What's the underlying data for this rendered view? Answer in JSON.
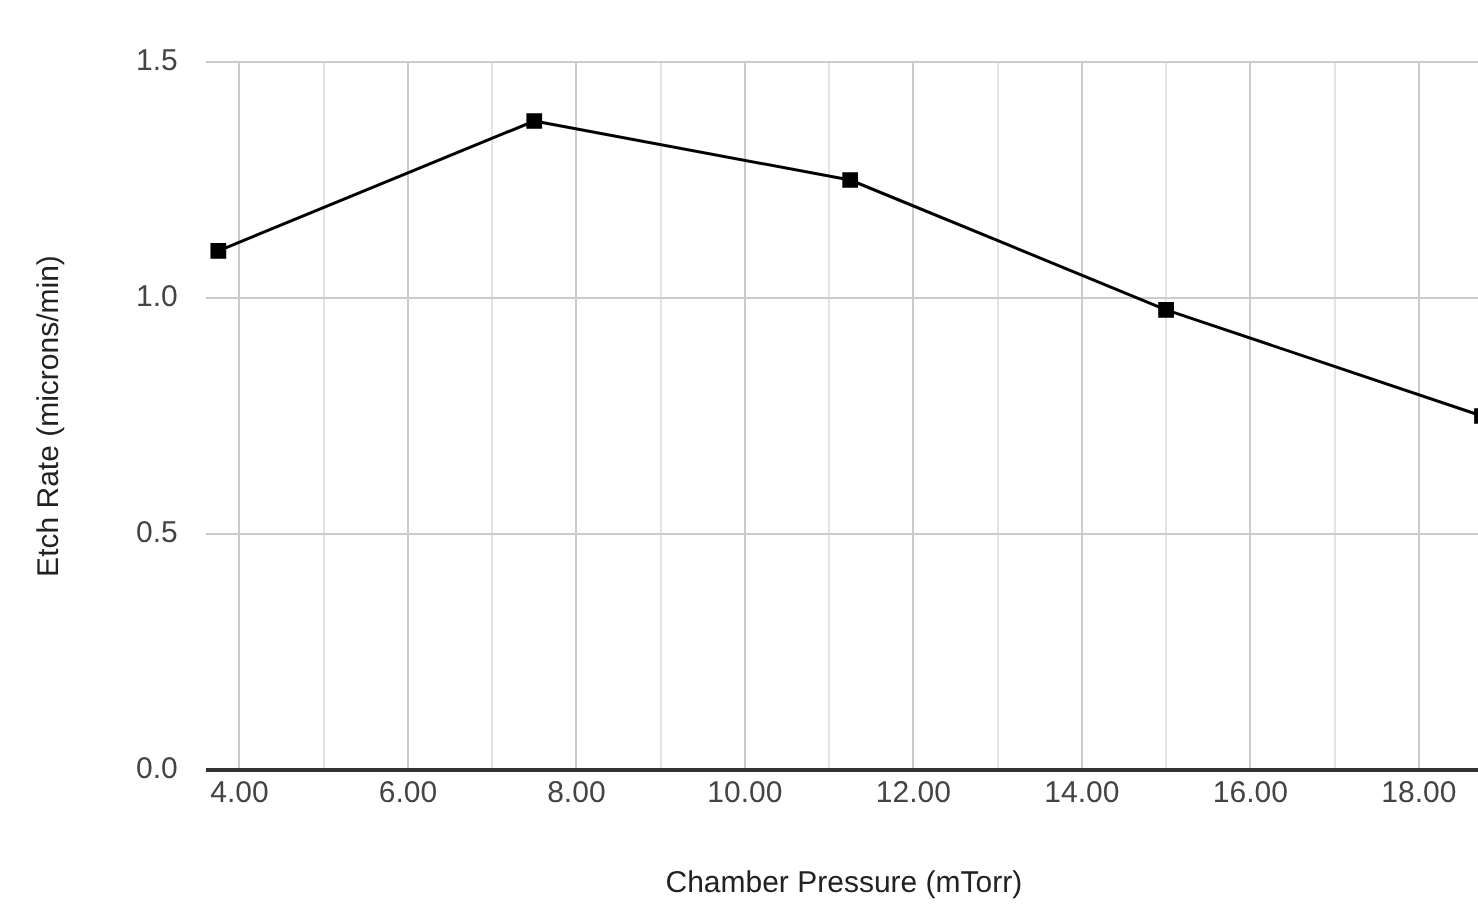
{
  "chart_data": {
    "type": "line",
    "xlabel": "Chamber Pressure (mTorr)",
    "ylabel": "Etch Rate (microns/min)",
    "x": [
      3.75,
      7.5,
      11.25,
      15,
      18.75
    ],
    "series": [
      {
        "color": "#000000",
        "values": [
          1.1,
          1.375,
          1.25,
          0.975,
          0.75
        ]
      }
    ],
    "xlim": [
      3.6,
      18.75
    ],
    "xticks": [
      {
        "value": 4,
        "label": "4.00"
      },
      {
        "value": 5,
        "label": null
      },
      {
        "value": 6,
        "label": "6.00"
      },
      {
        "value": 7,
        "label": null
      },
      {
        "value": 8,
        "label": "8.00"
      },
      {
        "value": 9,
        "label": null
      },
      {
        "value": 10,
        "label": "10.00"
      },
      {
        "value": 11,
        "label": null
      },
      {
        "value": 12,
        "label": "12.00"
      },
      {
        "value": 13,
        "label": null
      },
      {
        "value": 14,
        "label": "14.00"
      },
      {
        "value": 15,
        "label": null
      },
      {
        "value": 16,
        "label": "16.00"
      },
      {
        "value": 17,
        "label": null
      },
      {
        "value": 18,
        "label": "18.00"
      }
    ],
    "ylim": [
      0,
      1.5
    ],
    "yticks": [
      {
        "value": 0,
        "label": "0.0"
      },
      {
        "value": 0.5,
        "label": "0.5"
      },
      {
        "value": 1,
        "label": "1.0"
      },
      {
        "value": 1.5,
        "label": "1.5"
      }
    ],
    "grid": true,
    "legend": false,
    "marker": "square",
    "line_style": "solid"
  }
}
